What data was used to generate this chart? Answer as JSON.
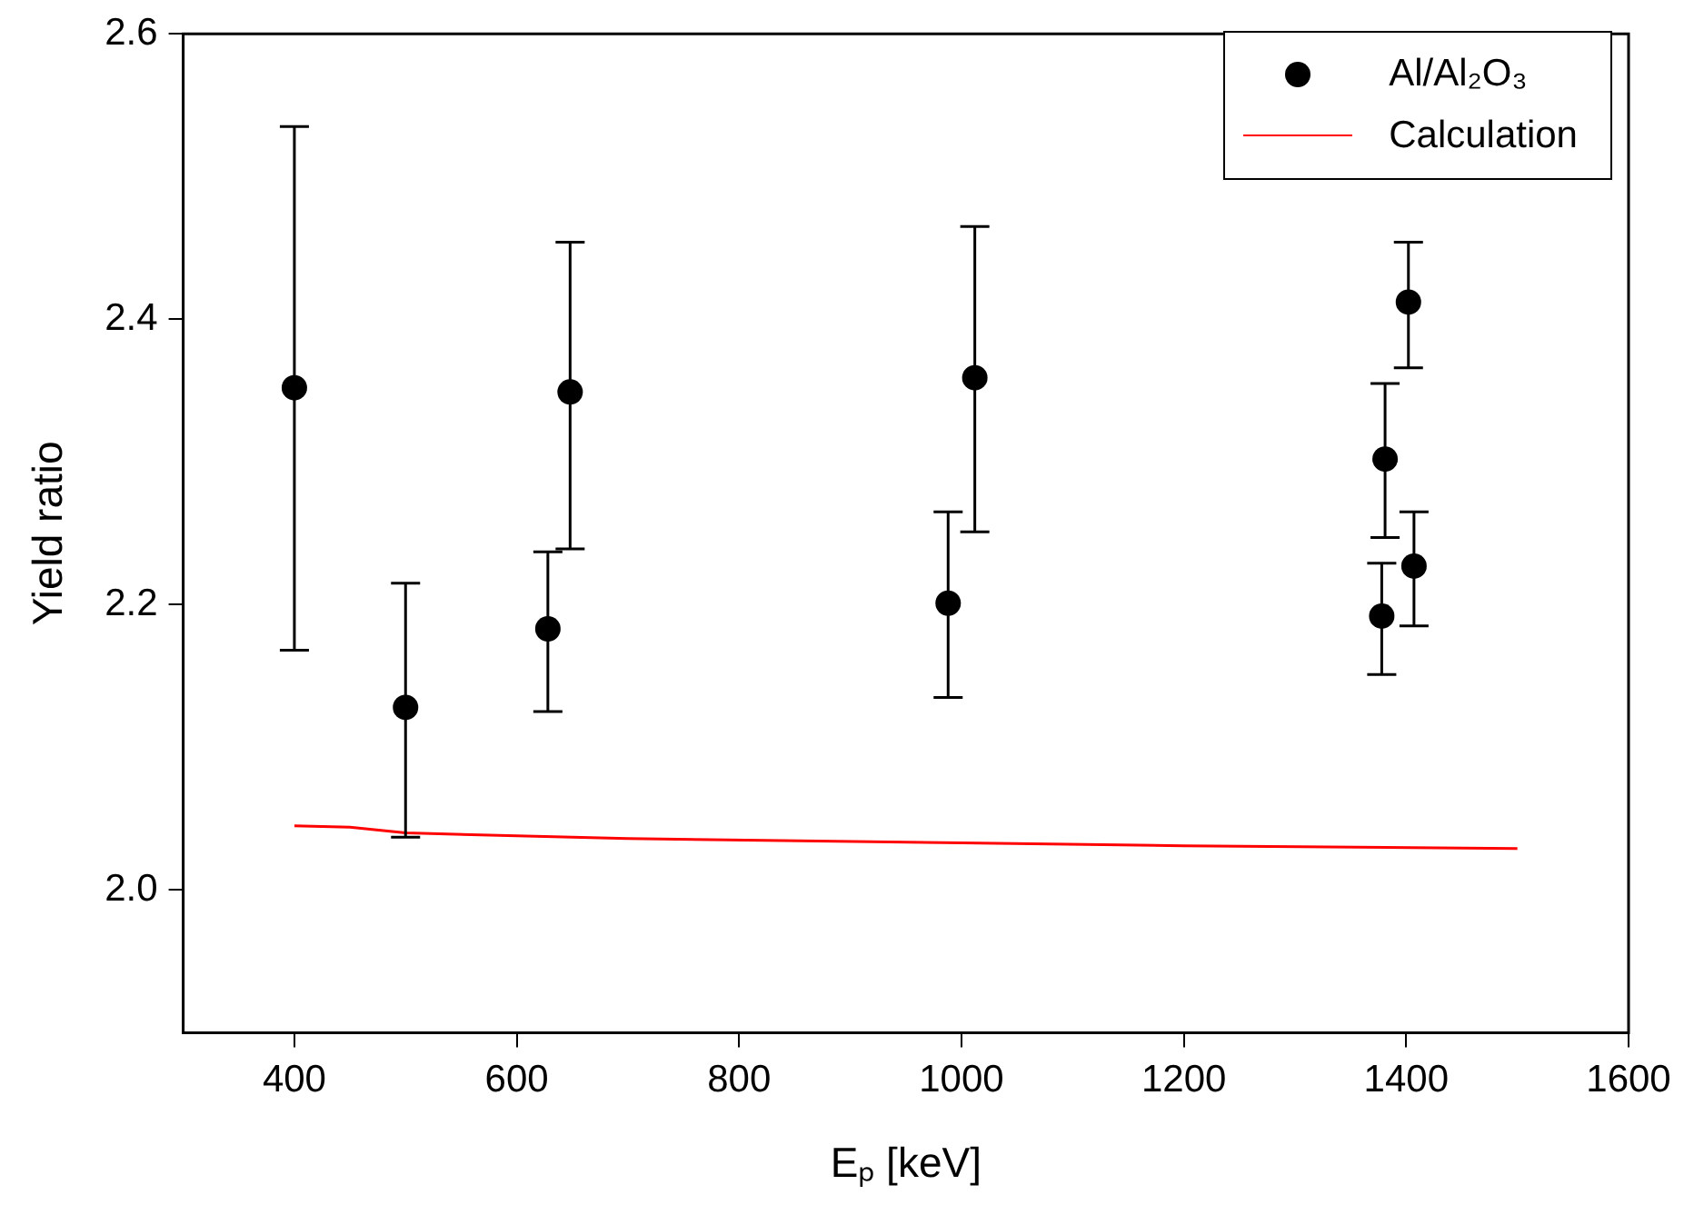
{
  "chart_data": {
    "type": "scatter",
    "xlabel": "Eₚ [keV]",
    "ylabel": "Yield ratio",
    "xlim": [
      300,
      1600
    ],
    "xticks": [
      400,
      600,
      800,
      1000,
      1200,
      1400,
      1600
    ],
    "ylim": [
      1.9,
      2.6
    ],
    "yticks": [
      {
        "value": 2,
        "label": "2.0"
      },
      {
        "value": 2.2,
        "label": "2.2"
      },
      {
        "value": 2.4,
        "label": "2.4"
      },
      {
        "value": 2.6,
        "label": "2.6"
      }
    ],
    "grid": false,
    "legend": "top right",
    "series": [
      {
        "name": "Al/Al₂O₃",
        "color": "#000000",
        "marker": "circle",
        "x": [
          400,
          500,
          628,
          648,
          988,
          1012,
          1378,
          1381,
          1402,
          1407
        ],
        "values": [
          2.352,
          2.128,
          2.183,
          2.349,
          2.201,
          2.359,
          2.192,
          2.302,
          2.412,
          2.227
        ],
        "errors": [
          [
            2.168,
            2.535
          ],
          [
            2.037,
            2.215
          ],
          [
            2.125,
            2.237
          ],
          [
            2.239,
            2.454
          ],
          [
            2.135,
            2.265
          ],
          [
            2.251,
            2.465
          ],
          [
            2.151,
            2.229
          ],
          [
            2.247,
            2.355
          ],
          [
            2.366,
            2.454
          ],
          [
            2.185,
            2.265
          ]
        ]
      },
      {
        "name": "Calculation",
        "type": "line",
        "color": "#ff0000",
        "marker": "none",
        "line_style": "solid",
        "x": [
          400,
          450,
          500,
          700,
          1000,
          1200,
          1500
        ],
        "values": [
          2.045,
          2.044,
          2.04,
          2.036,
          2.033,
          2.031,
          2.029
        ]
      }
    ]
  }
}
